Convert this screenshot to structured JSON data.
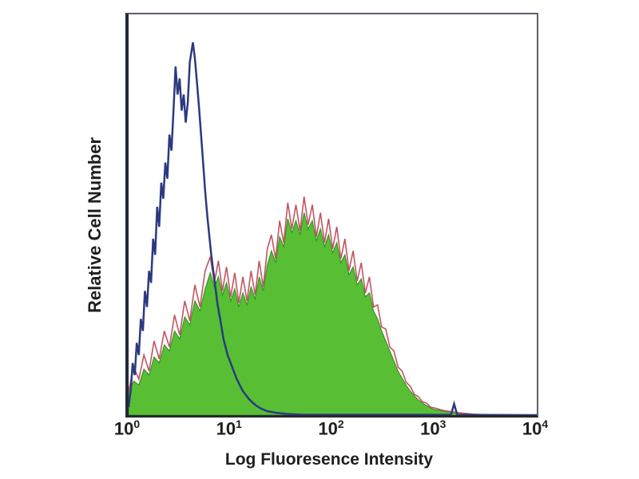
{
  "figure": {
    "xlabel": "Log Fluoresence Intensity",
    "ylabel": "Relative Cell Number",
    "colors": {
      "background": "#ffffff",
      "text": "#1e1e1e",
      "frame": "#5b6069",
      "frame_left": "#232936",
      "frame_bottom": "#26292e",
      "control_line": "#2b3a80",
      "fill": "#58bf35",
      "fill_edge": "#3f8f2a",
      "outline": "#c05560"
    }
  },
  "chart_data": {
    "type": "area",
    "title": "",
    "xlabel": "Log Fluoresence Intensity",
    "ylabel": "Relative Cell Number",
    "x_scale": "log10",
    "x_range": [
      1,
      10000
    ],
    "x_range_decades": [
      0,
      4
    ],
    "y_axis": "relative, unlabeled (0 = baseline, 1 = frame top)",
    "grid": false,
    "legend": "none",
    "x_ticks": [
      {
        "base": "10",
        "exp": "0",
        "value": 1
      },
      {
        "base": "10",
        "exp": "1",
        "value": 10
      },
      {
        "base": "10",
        "exp": "2",
        "value": 100
      },
      {
        "base": "10",
        "exp": "3",
        "value": 1000
      },
      {
        "base": "10",
        "exp": "4",
        "value": 10000
      }
    ],
    "series": [
      {
        "name": "stained-green-fill",
        "style": "area",
        "color": "#58bf35",
        "edge_color": "#3f8f2a",
        "points": [
          [
            0.0,
            0.055
          ],
          [
            0.05,
            0.085
          ],
          [
            0.1,
            0.075
          ],
          [
            0.15,
            0.115
          ],
          [
            0.2,
            0.1
          ],
          [
            0.25,
            0.145
          ],
          [
            0.3,
            0.13
          ],
          [
            0.35,
            0.175
          ],
          [
            0.4,
            0.16
          ],
          [
            0.45,
            0.21
          ],
          [
            0.5,
            0.19
          ],
          [
            0.55,
            0.245
          ],
          [
            0.6,
            0.225
          ],
          [
            0.65,
            0.285
          ],
          [
            0.7,
            0.26
          ],
          [
            0.75,
            0.315
          ],
          [
            0.8,
            0.355
          ],
          [
            0.84,
            0.32
          ],
          [
            0.88,
            0.345
          ],
          [
            0.92,
            0.3
          ],
          [
            0.96,
            0.33
          ],
          [
            1.0,
            0.285
          ],
          [
            1.04,
            0.315
          ],
          [
            1.08,
            0.27
          ],
          [
            1.12,
            0.305
          ],
          [
            1.16,
            0.275
          ],
          [
            1.2,
            0.32
          ],
          [
            1.24,
            0.29
          ],
          [
            1.28,
            0.345
          ],
          [
            1.32,
            0.31
          ],
          [
            1.36,
            0.375
          ],
          [
            1.4,
            0.41
          ],
          [
            1.44,
            0.38
          ],
          [
            1.48,
            0.445
          ],
          [
            1.52,
            0.42
          ],
          [
            1.56,
            0.49
          ],
          [
            1.6,
            0.455
          ],
          [
            1.64,
            0.485
          ],
          [
            1.68,
            0.45
          ],
          [
            1.72,
            0.505
          ],
          [
            1.76,
            0.465
          ],
          [
            1.8,
            0.485
          ],
          [
            1.84,
            0.435
          ],
          [
            1.88,
            0.465
          ],
          [
            1.92,
            0.42
          ],
          [
            1.96,
            0.45
          ],
          [
            2.0,
            0.405
          ],
          [
            2.04,
            0.43
          ],
          [
            2.08,
            0.38
          ],
          [
            2.12,
            0.4
          ],
          [
            2.16,
            0.35
          ],
          [
            2.2,
            0.37
          ],
          [
            2.24,
            0.325
          ],
          [
            2.28,
            0.34
          ],
          [
            2.32,
            0.295
          ],
          [
            2.36,
            0.305
          ],
          [
            2.4,
            0.26
          ],
          [
            2.44,
            0.24
          ],
          [
            2.48,
            0.21
          ],
          [
            2.52,
            0.185
          ],
          [
            2.56,
            0.16
          ],
          [
            2.6,
            0.135
          ],
          [
            2.64,
            0.11
          ],
          [
            2.68,
            0.092
          ],
          [
            2.72,
            0.075
          ],
          [
            2.76,
            0.06
          ],
          [
            2.8,
            0.048
          ],
          [
            2.84,
            0.038
          ],
          [
            2.88,
            0.03
          ],
          [
            2.92,
            0.024
          ],
          [
            2.96,
            0.018
          ],
          [
            3.0,
            0.014
          ],
          [
            3.08,
            0.01
          ],
          [
            3.16,
            0.007
          ],
          [
            3.24,
            0.005
          ],
          [
            3.32,
            0.003
          ],
          [
            3.4,
            0.002
          ],
          [
            3.5,
            0.001
          ],
          [
            4.0,
            0.0
          ]
        ]
      },
      {
        "name": "stained-red-outline",
        "style": "line",
        "color": "#c05560",
        "width": 1.6,
        "points": [
          [
            0.0,
            0.06
          ],
          [
            0.05,
            0.12
          ],
          [
            0.1,
            0.09
          ],
          [
            0.15,
            0.15
          ],
          [
            0.2,
            0.11
          ],
          [
            0.25,
            0.185
          ],
          [
            0.3,
            0.14
          ],
          [
            0.35,
            0.21
          ],
          [
            0.4,
            0.17
          ],
          [
            0.45,
            0.25
          ],
          [
            0.5,
            0.2
          ],
          [
            0.55,
            0.285
          ],
          [
            0.6,
            0.235
          ],
          [
            0.65,
            0.325
          ],
          [
            0.7,
            0.27
          ],
          [
            0.75,
            0.36
          ],
          [
            0.8,
            0.395
          ],
          [
            0.84,
            0.33
          ],
          [
            0.88,
            0.385
          ],
          [
            0.92,
            0.31
          ],
          [
            0.96,
            0.37
          ],
          [
            1.0,
            0.295
          ],
          [
            1.04,
            0.355
          ],
          [
            1.08,
            0.28
          ],
          [
            1.12,
            0.345
          ],
          [
            1.16,
            0.285
          ],
          [
            1.2,
            0.36
          ],
          [
            1.24,
            0.3
          ],
          [
            1.28,
            0.385
          ],
          [
            1.32,
            0.32
          ],
          [
            1.36,
            0.415
          ],
          [
            1.4,
            0.45
          ],
          [
            1.44,
            0.39
          ],
          [
            1.48,
            0.485
          ],
          [
            1.52,
            0.43
          ],
          [
            1.56,
            0.53
          ],
          [
            1.6,
            0.465
          ],
          [
            1.64,
            0.525
          ],
          [
            1.68,
            0.46
          ],
          [
            1.72,
            0.545
          ],
          [
            1.76,
            0.475
          ],
          [
            1.8,
            0.525
          ],
          [
            1.84,
            0.445
          ],
          [
            1.88,
            0.505
          ],
          [
            1.92,
            0.43
          ],
          [
            1.96,
            0.49
          ],
          [
            2.0,
            0.415
          ],
          [
            2.04,
            0.47
          ],
          [
            2.08,
            0.39
          ],
          [
            2.12,
            0.44
          ],
          [
            2.16,
            0.36
          ],
          [
            2.2,
            0.41
          ],
          [
            2.24,
            0.335
          ],
          [
            2.28,
            0.38
          ],
          [
            2.32,
            0.305
          ],
          [
            2.36,
            0.345
          ],
          [
            2.4,
            0.27
          ],
          [
            2.44,
            0.275
          ],
          [
            2.48,
            0.22
          ],
          [
            2.52,
            0.215
          ],
          [
            2.56,
            0.17
          ],
          [
            2.6,
            0.16
          ],
          [
            2.64,
            0.12
          ],
          [
            2.68,
            0.11
          ],
          [
            2.72,
            0.082
          ],
          [
            2.76,
            0.072
          ],
          [
            2.8,
            0.052
          ],
          [
            2.84,
            0.046
          ],
          [
            2.88,
            0.033
          ],
          [
            2.92,
            0.03
          ],
          [
            2.96,
            0.02
          ],
          [
            3.0,
            0.018
          ],
          [
            3.08,
            0.012
          ],
          [
            3.16,
            0.009
          ],
          [
            3.24,
            0.006
          ],
          [
            3.32,
            0.004
          ],
          [
            3.4,
            0.002
          ],
          [
            3.5,
            0.001
          ],
          [
            4.0,
            0.0
          ]
        ]
      },
      {
        "name": "unstained-control-blue",
        "style": "line",
        "color": "#2b3a80",
        "width": 2.5,
        "points": [
          [
            0.0,
            0.02
          ],
          [
            0.02,
            0.06
          ],
          [
            0.04,
            0.13
          ],
          [
            0.06,
            0.1
          ],
          [
            0.08,
            0.18
          ],
          [
            0.1,
            0.15
          ],
          [
            0.12,
            0.24
          ],
          [
            0.14,
            0.21
          ],
          [
            0.16,
            0.31
          ],
          [
            0.18,
            0.27
          ],
          [
            0.2,
            0.36
          ],
          [
            0.22,
            0.33
          ],
          [
            0.24,
            0.44
          ],
          [
            0.26,
            0.4
          ],
          [
            0.28,
            0.52
          ],
          [
            0.3,
            0.47
          ],
          [
            0.32,
            0.58
          ],
          [
            0.34,
            0.54
          ],
          [
            0.36,
            0.63
          ],
          [
            0.38,
            0.59
          ],
          [
            0.4,
            0.7
          ],
          [
            0.42,
            0.66
          ],
          [
            0.44,
            0.76
          ],
          [
            0.46,
            0.87
          ],
          [
            0.48,
            0.8
          ],
          [
            0.5,
            0.84
          ],
          [
            0.52,
            0.76
          ],
          [
            0.54,
            0.8
          ],
          [
            0.56,
            0.73
          ],
          [
            0.58,
            0.78
          ],
          [
            0.6,
            0.88
          ],
          [
            0.63,
            0.93
          ],
          [
            0.65,
            0.89
          ],
          [
            0.67,
            0.83
          ],
          [
            0.69,
            0.77
          ],
          [
            0.71,
            0.7
          ],
          [
            0.73,
            0.63
          ],
          [
            0.75,
            0.56
          ],
          [
            0.77,
            0.5
          ],
          [
            0.79,
            0.45
          ],
          [
            0.81,
            0.4
          ],
          [
            0.83,
            0.36
          ],
          [
            0.85,
            0.32
          ],
          [
            0.87,
            0.28
          ],
          [
            0.89,
            0.25
          ],
          [
            0.91,
            0.22
          ],
          [
            0.93,
            0.19
          ],
          [
            0.95,
            0.17
          ],
          [
            0.97,
            0.15
          ],
          [
            1.0,
            0.13
          ],
          [
            1.03,
            0.11
          ],
          [
            1.06,
            0.09
          ],
          [
            1.09,
            0.075
          ],
          [
            1.12,
            0.06
          ],
          [
            1.15,
            0.05
          ],
          [
            1.18,
            0.04
          ],
          [
            1.22,
            0.03
          ],
          [
            1.26,
            0.022
          ],
          [
            1.3,
            0.016
          ],
          [
            1.36,
            0.01
          ],
          [
            1.44,
            0.006
          ],
          [
            1.55,
            0.003
          ],
          [
            1.7,
            0.001
          ],
          [
            3.16,
            0.001
          ],
          [
            3.19,
            0.028
          ],
          [
            3.22,
            0.001
          ],
          [
            4.0,
            0.0
          ]
        ]
      }
    ]
  }
}
